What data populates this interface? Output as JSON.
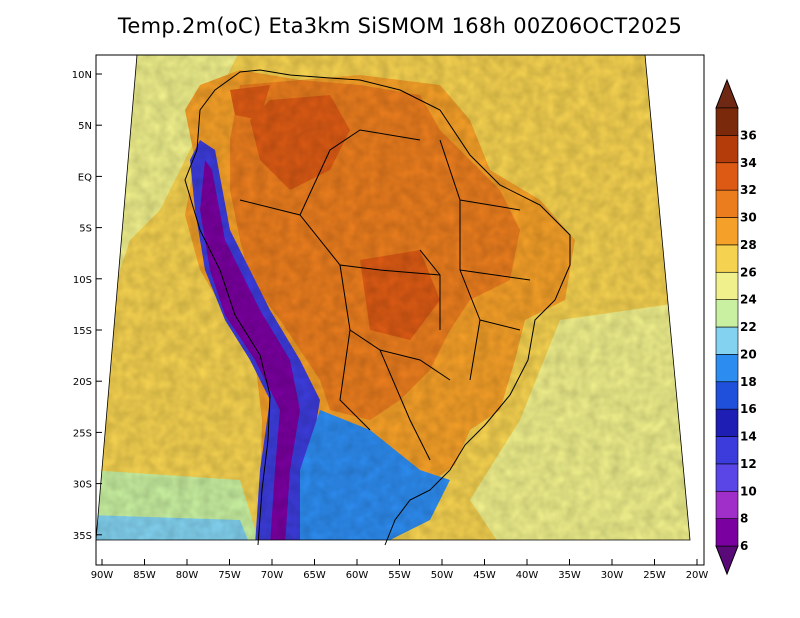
{
  "title": "Temp.2m(oC) Eta3km SiSMOM 168h 00Z06OCT2025",
  "axes": {
    "x_ticks": [
      "90W",
      "85W",
      "80W",
      "75W",
      "70W",
      "65W",
      "60W",
      "55W",
      "50W",
      "45W",
      "40W",
      "35W",
      "30W",
      "25W",
      "20W"
    ],
    "y_ticks": [
      "10N",
      "5N",
      "EQ",
      "5S",
      "10S",
      "15S",
      "20S",
      "25S",
      "30S",
      "35S"
    ]
  },
  "colorbar": {
    "labels": [
      "6",
      "8",
      "10",
      "12",
      "14",
      "16",
      "18",
      "20",
      "22",
      "24",
      "26",
      "28",
      "30",
      "32",
      "34",
      "36"
    ],
    "colors": [
      "#7a00a0",
      "#a02ec8",
      "#5a46e6",
      "#3c3cdc",
      "#1e1eb4",
      "#1e50dc",
      "#2d8cf0",
      "#82d2f0",
      "#c8f0a0",
      "#f0f08c",
      "#f5d250",
      "#f5a028",
      "#eb7d1e",
      "#dc5a14",
      "#b43c0a",
      "#7a2a0a"
    ],
    "top_color": "#6e2814",
    "bottom_color": "#5a0a78"
  },
  "field_colors": {
    "ocean_warm": "#f5d250",
    "ocean_mid": "#f0f08c",
    "ocean_cool": "#c8f0a0",
    "ocean_cold": "#82d2f0",
    "land_hot": "#eb7d1e",
    "land_veryhot": "#dc5a14",
    "land_warm": "#f5a028",
    "andes_cold": "#7a00a0",
    "andes_mid": "#3c3cdc",
    "south_cool": "#2d8cf0"
  }
}
